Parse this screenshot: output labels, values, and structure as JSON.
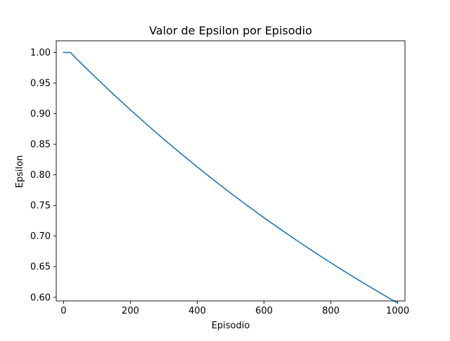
{
  "chart_data": {
    "type": "line",
    "title": "Valor de Epsilon por Episodio",
    "xlabel": "Episodio",
    "ylabel": "Epsilon",
    "xlim": [
      -22,
      1022
    ],
    "ylim": [
      0.594,
      1.019
    ],
    "xticks": [
      0,
      200,
      400,
      600,
      800,
      1000
    ],
    "xtick_labels": [
      "0",
      "200",
      "400",
      "600",
      "800",
      "1000"
    ],
    "yticks": [
      0.6,
      0.65,
      0.7,
      0.75,
      0.8,
      0.85,
      0.9,
      0.95,
      1.0
    ],
    "ytick_labels": [
      "0.60",
      "0.65",
      "0.70",
      "0.75",
      "0.80",
      "0.85",
      "0.90",
      "0.95",
      "1.00"
    ],
    "grid": false,
    "series": [
      {
        "color": "#1f77b4",
        "x": [
          0,
          20,
          50,
          100,
          150,
          200,
          250,
          300,
          350,
          400,
          450,
          500,
          550,
          600,
          650,
          700,
          750,
          800,
          850,
          900,
          950,
          1000
        ],
        "y": [
          1.0,
          1.0,
          0.9834,
          0.957,
          0.9311,
          0.9062,
          0.8818,
          0.8582,
          0.8352,
          0.8129,
          0.7912,
          0.7702,
          0.7498,
          0.7299,
          0.7108,
          0.6921,
          0.6739,
          0.6563,
          0.6392,
          0.6225,
          0.6063,
          0.5905
        ]
      }
    ]
  }
}
